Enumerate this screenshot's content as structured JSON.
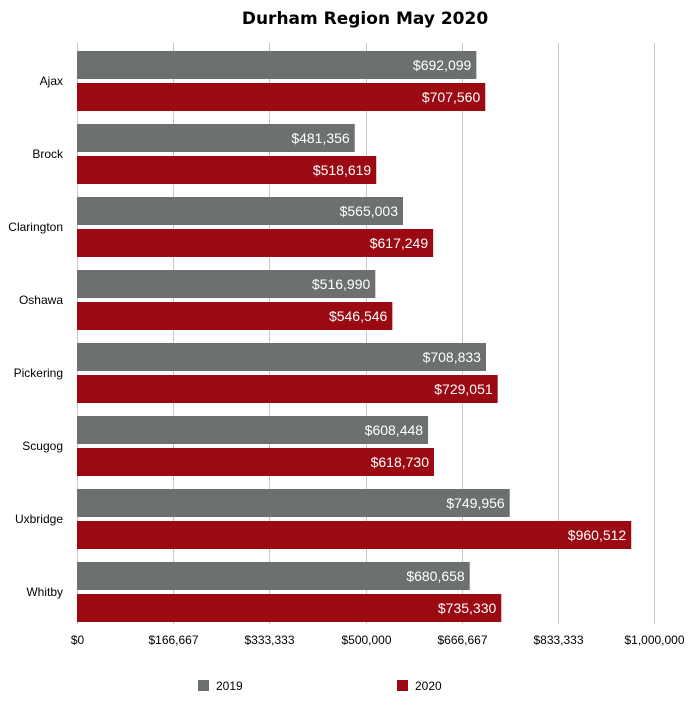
{
  "chart_data": {
    "type": "bar",
    "orientation": "horizontal",
    "title": "Durham Region May 2020",
    "xlabel": "",
    "ylabel": "",
    "categories": [
      "Ajax",
      "Brock",
      "Clarington",
      "Oshawa",
      "Pickering",
      "Scugog",
      "Uxbridge",
      "Whitby"
    ],
    "series": [
      {
        "name": "2019",
        "color": "#6d716e",
        "values": [
          692099,
          481356,
          565003,
          516990,
          708833,
          608448,
          749956,
          680658
        ],
        "labels": [
          "$692,099",
          "$481,356",
          "$565,003",
          "$516,990",
          "$708,833",
          "$608,448",
          "$749,956",
          "$680,658"
        ]
      },
      {
        "name": "2020",
        "color": "#9b0a12",
        "values": [
          707560,
          518619,
          617249,
          546546,
          729051,
          618730,
          960512,
          735330
        ],
        "labels": [
          "$707,560",
          "$518,619",
          "$617,249",
          "$546,546",
          "$729,051",
          "$618,730",
          "$960,512",
          "$735,330"
        ]
      }
    ],
    "xlim": [
      0,
      1000000
    ],
    "x_ticks": [
      0,
      166667,
      333333,
      500000,
      666667,
      833333,
      1000000
    ],
    "x_tick_labels": [
      "$0",
      "$166,667",
      "$333,333",
      "$500,000",
      "$666,667",
      "$833,333",
      "$1,000,000"
    ],
    "grid": true,
    "legend_position": "bottom"
  }
}
